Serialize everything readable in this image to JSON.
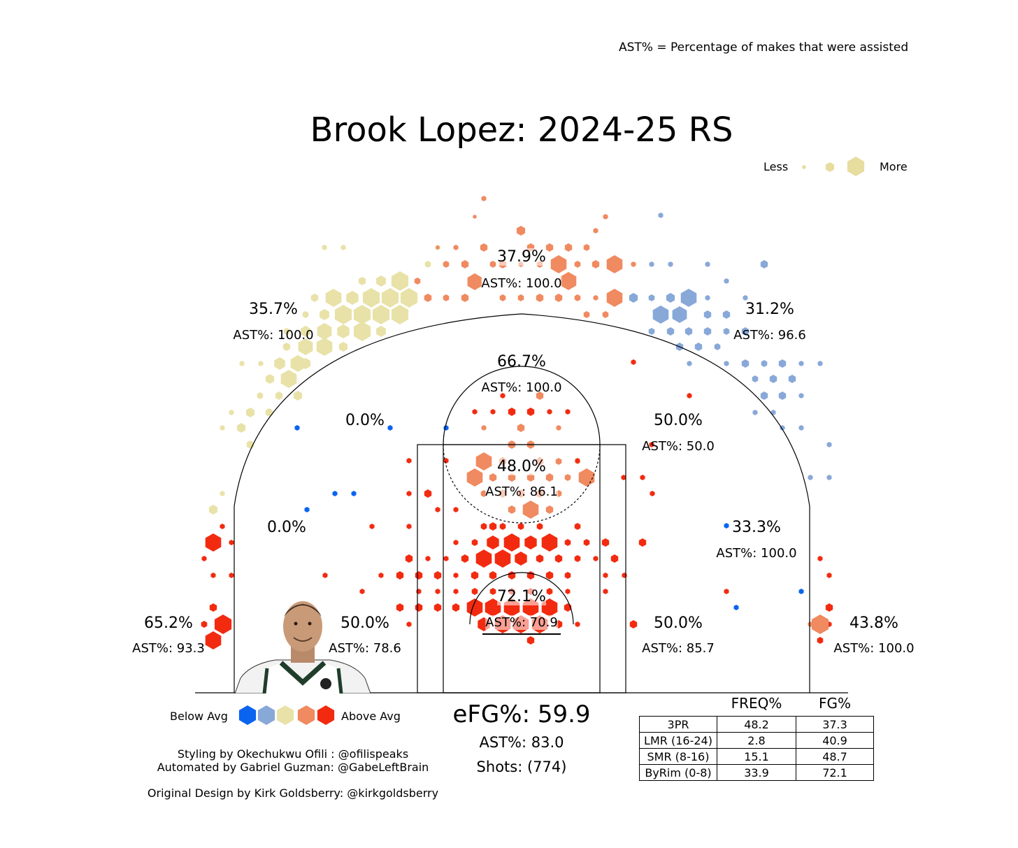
{
  "header": {
    "note": "AST% = Percentage of makes that were assisted",
    "title": "Brook Lopez: 2024-25 RS"
  },
  "size_legend": {
    "less": "Less",
    "more": "More",
    "color": "#e6dd9e"
  },
  "color_legend": {
    "below": "Below Avg",
    "above": "Above Avg",
    "colors": [
      "#0a64f0",
      "#88a8d8",
      "#e8e2a8",
      "#f08a60",
      "#f22b10"
    ]
  },
  "zones": [
    {
      "pct": "35.7%",
      "ast": "AST%: 100.0"
    },
    {
      "pct": "37.9%",
      "ast": "AST%: 100.0"
    },
    {
      "pct": "31.2%",
      "ast": "AST%: 96.6"
    },
    {
      "pct": "66.7%",
      "ast": "AST%: 100.0"
    },
    {
      "pct": "0.0%",
      "ast": ""
    },
    {
      "pct": "50.0%",
      "ast": "AST%: 50.0"
    },
    {
      "pct": "48.0%",
      "ast": "AST%: 86.1"
    },
    {
      "pct": "0.0%",
      "ast": ""
    },
    {
      "pct": "33.3%",
      "ast": "AST%: 100.0"
    },
    {
      "pct": "65.2%",
      "ast": "AST%: 93.3"
    },
    {
      "pct": "50.0%",
      "ast": "AST%: 78.6"
    },
    {
      "pct": "72.1%",
      "ast": "AST%: 70.9"
    },
    {
      "pct": "50.0%",
      "ast": "AST%: 85.7"
    },
    {
      "pct": "43.8%",
      "ast": "AST%: 100.0"
    }
  ],
  "summary": {
    "efg": "eFG%: 59.9",
    "ast": "AST%: 83.0",
    "shots": "Shots: (774)"
  },
  "credits": {
    "line1": "Styling by Okechukwu Ofili : @ofilispeaks",
    "line2": "Automated by Gabriel Guzman: @GabeLeftBrain",
    "line3": "Original Design by Kirk Goldsberry: @kirkgoldsberry"
  },
  "chart_data": {
    "type": "table",
    "columns": [
      "",
      "FREQ%",
      "FG%"
    ],
    "rows": [
      {
        "label": "3PR",
        "freq": "48.2",
        "fg": "37.3"
      },
      {
        "label": "LMR (16-24)",
        "freq": "2.8",
        "fg": "40.9"
      },
      {
        "label": "SMR (8-16)",
        "freq": "15.1",
        "fg": "48.7"
      },
      {
        "label": "ByRim (0-8)",
        "freq": "33.9",
        "fg": "72.1"
      }
    ]
  }
}
